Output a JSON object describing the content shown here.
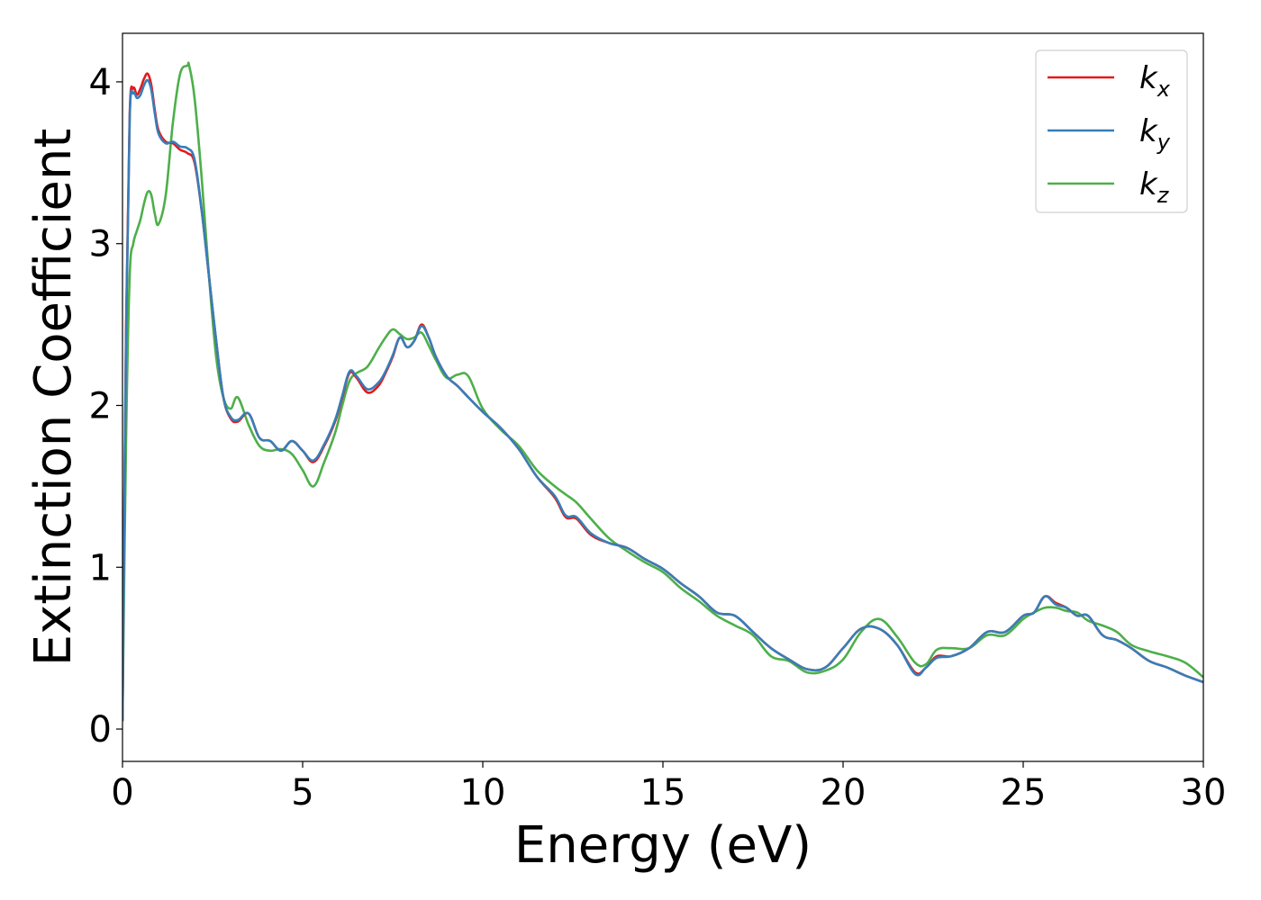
{
  "chart_data": {
    "type": "line",
    "xlabel": "Energy (eV)",
    "ylabel": "Extinction Coefficient",
    "xlim": [
      0,
      30
    ],
    "ylim": [
      -0.2,
      4.3
    ],
    "xticks": [
      0,
      5,
      10,
      15,
      20,
      25,
      30
    ],
    "yticks": [
      0,
      1,
      2,
      3,
      4
    ],
    "grid": false,
    "legend_position": "top-right",
    "series": [
      {
        "name": "k",
        "subscript": "x",
        "color": "#e41a1c",
        "x": [
          0,
          0.1,
          0.2,
          0.3,
          0.4,
          0.5,
          0.6,
          0.7,
          0.8,
          0.9,
          1.0,
          1.2,
          1.4,
          1.6,
          1.8,
          2.0,
          2.2,
          2.4,
          2.6,
          2.8,
          3.0,
          3.2,
          3.5,
          3.8,
          4.1,
          4.4,
          4.7,
          5.0,
          5.3,
          5.6,
          5.9,
          6.1,
          6.3,
          6.5,
          6.8,
          7.1,
          7.3,
          7.5,
          7.7,
          7.9,
          8.1,
          8.3,
          8.5,
          8.7,
          9.0,
          9.3,
          9.6,
          10.0,
          10.5,
          11.0,
          11.5,
          12.0,
          12.3,
          12.6,
          13.0,
          13.5,
          14.0,
          14.5,
          15.0,
          15.5,
          16.0,
          16.5,
          17.0,
          17.5,
          18.0,
          18.5,
          19.0,
          19.5,
          20.0,
          20.5,
          21.0,
          21.5,
          22.0,
          22.3,
          22.6,
          23.0,
          23.5,
          24.0,
          24.5,
          25.0,
          25.3,
          25.6,
          25.9,
          26.2,
          26.5,
          26.8,
          27.2,
          27.6,
          28.0,
          28.5,
          29.0,
          29.5,
          30.0
        ],
        "y": [
          0.05,
          2.5,
          3.8,
          3.96,
          3.92,
          3.96,
          4.02,
          4.05,
          3.98,
          3.82,
          3.7,
          3.63,
          3.62,
          3.58,
          3.56,
          3.5,
          3.2,
          2.8,
          2.4,
          2.05,
          1.92,
          1.9,
          1.95,
          1.8,
          1.78,
          1.72,
          1.78,
          1.72,
          1.65,
          1.75,
          1.9,
          2.05,
          2.2,
          2.17,
          2.08,
          2.12,
          2.2,
          2.3,
          2.42,
          2.36,
          2.4,
          2.5,
          2.42,
          2.3,
          2.18,
          2.12,
          2.05,
          1.96,
          1.86,
          1.73,
          1.56,
          1.43,
          1.31,
          1.3,
          1.2,
          1.15,
          1.12,
          1.05,
          0.99,
          0.9,
          0.82,
          0.72,
          0.7,
          0.6,
          0.5,
          0.43,
          0.37,
          0.38,
          0.5,
          0.62,
          0.62,
          0.52,
          0.35,
          0.38,
          0.45,
          0.45,
          0.5,
          0.6,
          0.6,
          0.7,
          0.72,
          0.82,
          0.78,
          0.75,
          0.7,
          0.7,
          0.58,
          0.55,
          0.5,
          0.42,
          0.38,
          0.33,
          0.29
        ]
      },
      {
        "name": "k",
        "subscript": "y",
        "color": "#377eb8",
        "x": [
          0,
          0.1,
          0.2,
          0.3,
          0.4,
          0.5,
          0.6,
          0.7,
          0.8,
          0.9,
          1.0,
          1.2,
          1.4,
          1.6,
          1.8,
          2.0,
          2.2,
          2.4,
          2.6,
          2.8,
          3.0,
          3.2,
          3.5,
          3.8,
          4.1,
          4.4,
          4.7,
          5.0,
          5.3,
          5.6,
          5.9,
          6.1,
          6.3,
          6.5,
          6.8,
          7.1,
          7.3,
          7.5,
          7.7,
          7.9,
          8.1,
          8.3,
          8.5,
          8.7,
          9.0,
          9.3,
          9.6,
          10.0,
          10.5,
          11.0,
          11.5,
          12.0,
          12.3,
          12.6,
          13.0,
          13.5,
          14.0,
          14.5,
          15.0,
          15.5,
          16.0,
          16.5,
          17.0,
          17.5,
          18.0,
          18.5,
          19.0,
          19.5,
          20.0,
          20.5,
          21.0,
          21.5,
          22.0,
          22.3,
          22.6,
          23.0,
          23.5,
          24.0,
          24.5,
          25.0,
          25.3,
          25.6,
          25.9,
          26.2,
          26.5,
          26.8,
          27.2,
          27.6,
          28.0,
          28.5,
          29.0,
          29.5,
          30.0
        ],
        "y": [
          0.05,
          2.45,
          3.78,
          3.93,
          3.9,
          3.92,
          3.98,
          4.01,
          3.95,
          3.8,
          3.68,
          3.62,
          3.63,
          3.6,
          3.59,
          3.52,
          3.2,
          2.8,
          2.4,
          2.05,
          1.93,
          1.91,
          1.95,
          1.8,
          1.78,
          1.72,
          1.78,
          1.72,
          1.66,
          1.76,
          1.91,
          2.06,
          2.21,
          2.18,
          2.1,
          2.14,
          2.21,
          2.31,
          2.42,
          2.36,
          2.4,
          2.49,
          2.42,
          2.3,
          2.18,
          2.12,
          2.05,
          1.96,
          1.86,
          1.73,
          1.56,
          1.44,
          1.32,
          1.31,
          1.21,
          1.15,
          1.12,
          1.05,
          0.99,
          0.9,
          0.82,
          0.72,
          0.7,
          0.6,
          0.5,
          0.43,
          0.37,
          0.38,
          0.5,
          0.62,
          0.62,
          0.52,
          0.34,
          0.38,
          0.44,
          0.45,
          0.5,
          0.6,
          0.6,
          0.7,
          0.72,
          0.82,
          0.77,
          0.75,
          0.7,
          0.7,
          0.58,
          0.55,
          0.5,
          0.42,
          0.38,
          0.33,
          0.29
        ]
      },
      {
        "name": "k",
        "subscript": "z",
        "color": "#4daf4a",
        "x": [
          0,
          0.1,
          0.2,
          0.3,
          0.4,
          0.5,
          0.6,
          0.7,
          0.8,
          0.9,
          1.0,
          1.2,
          1.4,
          1.6,
          1.8,
          1.85,
          2.0,
          2.2,
          2.4,
          2.6,
          2.8,
          3.0,
          3.2,
          3.5,
          3.8,
          4.1,
          4.4,
          4.7,
          5.0,
          5.3,
          5.6,
          5.9,
          6.1,
          6.3,
          6.5,
          6.8,
          7.1,
          7.3,
          7.5,
          7.7,
          7.9,
          8.1,
          8.3,
          8.5,
          8.7,
          9.0,
          9.3,
          9.6,
          10.0,
          10.5,
          11.0,
          11.5,
          12.0,
          12.3,
          12.6,
          13.0,
          13.5,
          14.0,
          14.5,
          15.0,
          15.5,
          16.0,
          16.5,
          17.0,
          17.5,
          18.0,
          18.5,
          19.0,
          19.5,
          20.0,
          20.5,
          21.0,
          21.5,
          22.0,
          22.3,
          22.6,
          23.0,
          23.5,
          24.0,
          24.5,
          25.0,
          25.3,
          25.6,
          25.9,
          26.2,
          26.5,
          26.8,
          27.2,
          27.6,
          28.0,
          28.5,
          29.0,
          29.5,
          30.0
        ],
        "y": [
          0.05,
          1.8,
          2.8,
          3.0,
          3.08,
          3.15,
          3.25,
          3.32,
          3.3,
          3.18,
          3.12,
          3.3,
          3.75,
          4.05,
          4.1,
          4.1,
          3.9,
          3.4,
          2.8,
          2.3,
          2.05,
          1.98,
          2.05,
          1.88,
          1.75,
          1.72,
          1.73,
          1.7,
          1.6,
          1.5,
          1.65,
          1.83,
          2.0,
          2.15,
          2.2,
          2.24,
          2.35,
          2.42,
          2.47,
          2.44,
          2.41,
          2.42,
          2.45,
          2.37,
          2.28,
          2.17,
          2.19,
          2.18,
          1.98,
          1.85,
          1.75,
          1.6,
          1.5,
          1.45,
          1.4,
          1.3,
          1.18,
          1.1,
          1.03,
          0.97,
          0.87,
          0.79,
          0.7,
          0.64,
          0.58,
          0.45,
          0.42,
          0.35,
          0.36,
          0.43,
          0.6,
          0.68,
          0.57,
          0.41,
          0.4,
          0.49,
          0.5,
          0.5,
          0.58,
          0.58,
          0.68,
          0.72,
          0.75,
          0.75,
          0.73,
          0.72,
          0.67,
          0.64,
          0.6,
          0.52,
          0.48,
          0.45,
          0.41,
          0.32
        ]
      }
    ]
  }
}
